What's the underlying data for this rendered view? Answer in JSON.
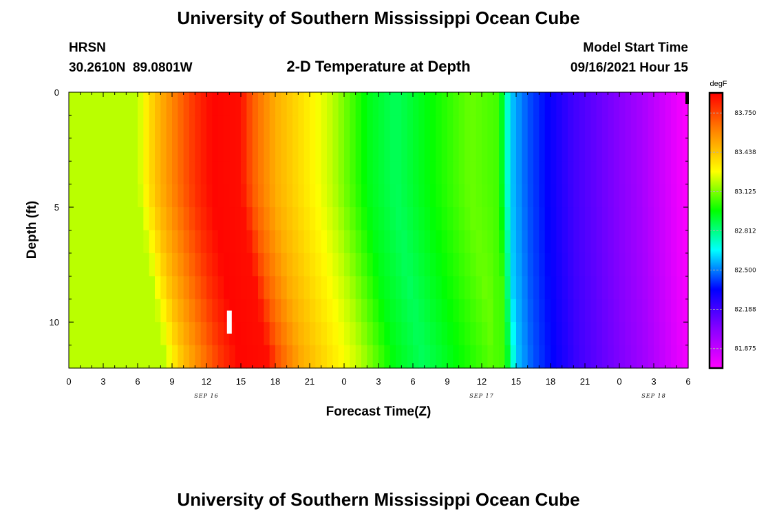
{
  "header": {
    "title": "University of Southern Mississippi Ocean Cube",
    "station": "HRSN",
    "coords": "30.2610N  89.0801W",
    "subtitle": "2-D Temperature at Depth",
    "start_label": "Model Start Time",
    "start_value": "09/16/2021 Hour 15"
  },
  "footer": {
    "title": "University of Southern Mississippi Ocean Cube"
  },
  "colorbar": {
    "unit": "degF",
    "labels": [
      "83.750",
      "83.438",
      "83.125",
      "82.812",
      "82.500",
      "82.188",
      "81.875"
    ],
    "colors": [
      "#ff00ff",
      "#8800ff",
      "#0000ff",
      "#00ffff",
      "#00ff00",
      "#ffff00",
      "#ff8800",
      "#ff0000"
    ]
  },
  "chart_data": {
    "type": "heatmap",
    "title": "2-D Temperature at Depth",
    "xlabel": "Forecast Time(Z)",
    "ylabel": "Depth (ft)",
    "x_range_hours": [
      0,
      54
    ],
    "y_range_ft": [
      0,
      12
    ],
    "y_inverted": true,
    "grid": false,
    "x_tick_values": [
      0,
      3,
      6,
      9,
      12,
      15,
      18,
      21,
      24,
      27,
      30,
      33,
      36,
      39,
      42,
      45,
      48,
      51,
      54
    ],
    "x_tick_labels": [
      "0",
      "3",
      "6",
      "9",
      "12",
      "15",
      "18",
      "21",
      "0",
      "3",
      "6",
      "9",
      "12",
      "15",
      "18",
      "21",
      "0",
      "3",
      "6"
    ],
    "date_labels": [
      {
        "text": "SEP 16",
        "hour": 12
      },
      {
        "text": "SEP 17",
        "hour": 36
      },
      {
        "text": "SEP 18",
        "hour": 51
      }
    ],
    "y_tick_values": [
      0,
      5,
      10
    ],
    "y_tick_labels": [
      "0",
      "5",
      "10"
    ],
    "value_range_degF": [
      81.72,
      83.91
    ],
    "colorbar_ticks_degF": [
      83.75,
      83.438,
      83.125,
      82.812,
      82.5,
      82.188,
      81.875
    ],
    "surface_profile": [
      {
        "hour": 0,
        "degF": 83.2
      },
      {
        "hour": 6,
        "degF": 83.2
      },
      {
        "hour": 7.5,
        "degF": 83.44
      },
      {
        "hour": 9,
        "degF": 83.6
      },
      {
        "hour": 11,
        "degF": 83.8
      },
      {
        "hour": 12.5,
        "degF": 83.9
      },
      {
        "hour": 15,
        "degF": 83.88
      },
      {
        "hour": 16,
        "degF": 83.7
      },
      {
        "hour": 18,
        "degF": 83.5
      },
      {
        "hour": 20,
        "degF": 83.38
      },
      {
        "hour": 23,
        "degF": 83.2
      },
      {
        "hour": 26,
        "degF": 82.95
      },
      {
        "hour": 28.5,
        "degF": 82.86
      },
      {
        "hour": 31,
        "degF": 82.95
      },
      {
        "hour": 35,
        "degF": 83.1
      },
      {
        "hour": 37.5,
        "degF": 83.05
      },
      {
        "hour": 38.5,
        "degF": 82.6
      },
      {
        "hour": 40,
        "degF": 82.45
      },
      {
        "hour": 44,
        "degF": 82.2
      },
      {
        "hour": 50,
        "degF": 81.95
      },
      {
        "hour": 54,
        "degF": 81.72
      }
    ],
    "deep_phase_shift_hours": 2.5,
    "marker": {
      "hour": 14,
      "depth_top_ft": 9.5,
      "depth_bottom_ft": 10.5
    }
  }
}
